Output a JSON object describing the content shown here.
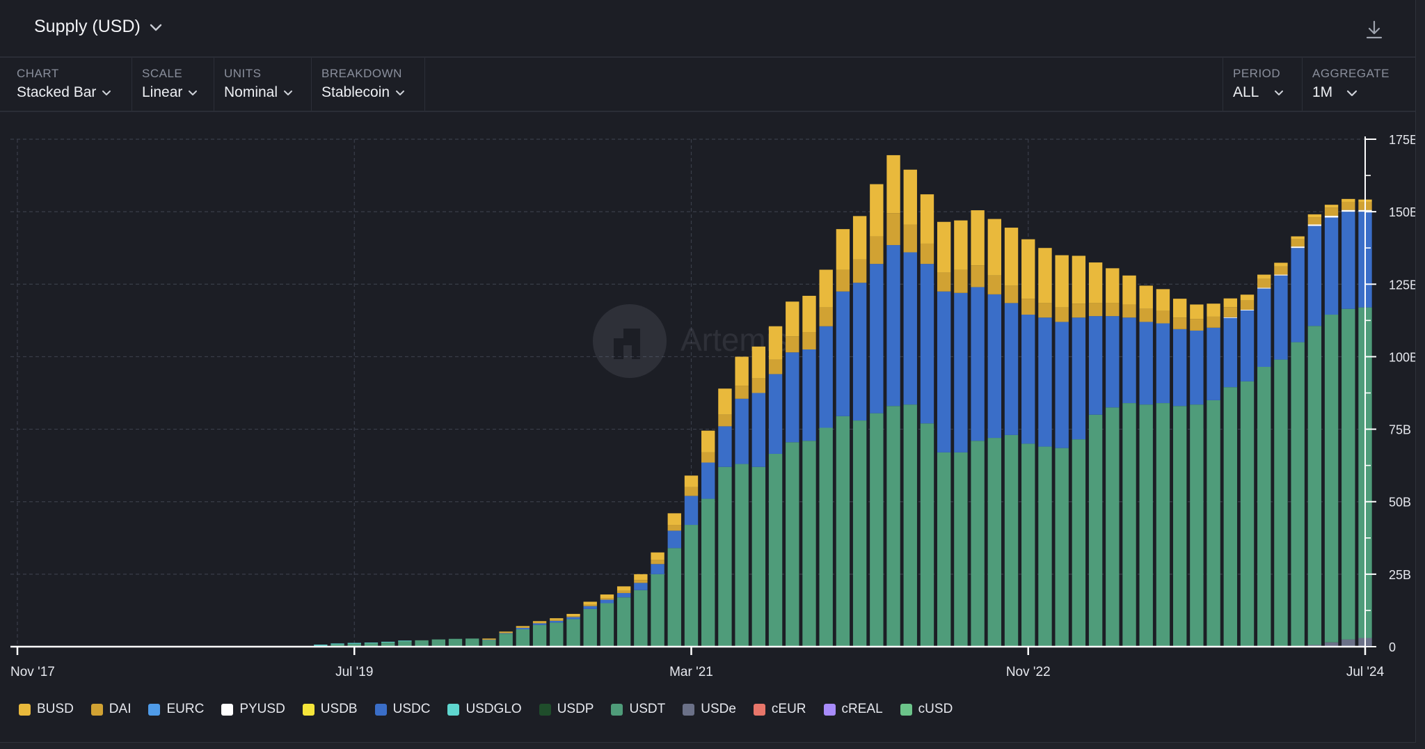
{
  "header": {
    "title": "Supply (USD)",
    "title_icon": "chevron-down-icon",
    "download_icon": "download-icon"
  },
  "controls": [
    {
      "label": "CHART",
      "value": "Stacked Bar"
    },
    {
      "label": "SCALE",
      "value": "Linear"
    },
    {
      "label": "UNITS",
      "value": "Nominal"
    },
    {
      "label": "BREAKDOWN",
      "value": "Stablecoin"
    },
    {
      "label": "PERIOD",
      "value": "ALL"
    },
    {
      "label": "AGGREGATE",
      "value": "1M"
    }
  ],
  "watermark": "Artemis",
  "colors": {
    "background": "#1c1e25",
    "grid": "#3a3e4a",
    "axis": "#ffffff"
  },
  "chart_data": {
    "type": "bar",
    "stacked": true,
    "ylim": [
      0,
      175
    ],
    "y_ticks": [
      0,
      25,
      50,
      75,
      100,
      125,
      150,
      175
    ],
    "y_tick_labels": [
      "0",
      "25B",
      "50B",
      "75B",
      "100B",
      "125B",
      "150B",
      "175E"
    ],
    "x_tick_labels": [
      "Nov '17",
      "Jul '19",
      "Mar '21",
      "Nov '22",
      "Jul '24"
    ],
    "x_tick_positions": [
      0,
      20,
      40,
      60,
      80
    ],
    "grid": true,
    "legend_position": "bottom-left",
    "categories": [
      "Nov '17",
      "Dec '17",
      "Jan '18",
      "Feb '18",
      "Mar '18",
      "Apr '18",
      "May '18",
      "Jun '18",
      "Jul '18",
      "Aug '18",
      "Sep '18",
      "Oct '18",
      "Nov '18",
      "Dec '18",
      "Jan '19",
      "Feb '19",
      "Mar '19",
      "Apr '19",
      "May '19",
      "Jun '19",
      "Jul '19",
      "Aug '19",
      "Sep '19",
      "Oct '19",
      "Nov '19",
      "Dec '19",
      "Jan '20",
      "Feb '20",
      "Mar '20",
      "Apr '20",
      "May '20",
      "Jun '20",
      "Jul '20",
      "Aug '20",
      "Sep '20",
      "Oct '20",
      "Nov '20",
      "Dec '20",
      "Jan '21",
      "Feb '21",
      "Mar '21",
      "Apr '21",
      "May '21",
      "Jun '21",
      "Jul '21",
      "Aug '21",
      "Sep '21",
      "Oct '21",
      "Nov '21",
      "Dec '21",
      "Jan '22",
      "Feb '22",
      "Mar '22",
      "Apr '22",
      "May '22",
      "Jun '22",
      "Jul '22",
      "Aug '22",
      "Sep '22",
      "Oct '22",
      "Nov '22",
      "Dec '22",
      "Jan '23",
      "Feb '23",
      "Mar '23",
      "Apr '23",
      "May '23",
      "Jun '23",
      "Jul '23",
      "Aug '23",
      "Sep '23",
      "Oct '23",
      "Nov '23",
      "Dec '23",
      "Jan '24",
      "Feb '24",
      "Mar '24",
      "Apr '24",
      "May '24",
      "Jun '24",
      "Jul '24"
    ],
    "series": [
      {
        "name": "cUSD",
        "color": "#6cc48a",
        "values": [
          0,
          0,
          0,
          0,
          0,
          0,
          0,
          0,
          0,
          0,
          0,
          0,
          0,
          0,
          0,
          0,
          0,
          0,
          0,
          0,
          0,
          0,
          0,
          0,
          0,
          0,
          0,
          0,
          0,
          0,
          0,
          0,
          0,
          0,
          0,
          0,
          0,
          0,
          0,
          0,
          0,
          0,
          0,
          0,
          0,
          0,
          0,
          0,
          0,
          0,
          0,
          0,
          0,
          0,
          0,
          0,
          0,
          0,
          0,
          0,
          0,
          0,
          0,
          0,
          0,
          0,
          0,
          0,
          0,
          0,
          0,
          0,
          0,
          0,
          0,
          0,
          0,
          0,
          0,
          0,
          0
        ]
      },
      {
        "name": "USDe",
        "color": "#6b7188",
        "values": [
          0,
          0,
          0,
          0,
          0,
          0,
          0,
          0,
          0,
          0,
          0,
          0,
          0,
          0,
          0,
          0,
          0,
          0,
          0,
          0,
          0,
          0,
          0,
          0,
          0,
          0,
          0,
          0,
          0,
          0,
          0,
          0,
          0,
          0,
          0,
          0,
          0,
          0,
          0,
          0,
          0,
          0,
          0,
          0,
          0,
          0,
          0,
          0,
          0,
          0,
          0,
          0,
          0,
          0,
          0,
          0,
          0,
          0,
          0,
          0,
          0,
          0,
          0,
          0,
          0,
          0,
          0,
          0,
          0,
          0,
          0,
          0,
          0,
          0,
          0,
          0,
          0,
          0.6,
          1.5,
          2.5,
          3
        ]
      },
      {
        "name": "USDT",
        "color": "#4f9c7a",
        "values": [
          0,
          0,
          0,
          0,
          0,
          0,
          0,
          0,
          0,
          0,
          0,
          0,
          0,
          0,
          0,
          0,
          0,
          0,
          0.3,
          0.8,
          1.0,
          1.2,
          1.5,
          2.0,
          2.2,
          2.5,
          2.7,
          2.8,
          2.4,
          4.5,
          6.0,
          7.5,
          8.3,
          9.5,
          13.0,
          15.0,
          17.0,
          19.5,
          25.0,
          34.0,
          42.0,
          51.0,
          62.0,
          63.0,
          62.0,
          66.5,
          70.5,
          71.0,
          75.5,
          79.5,
          78.0,
          80.5,
          83.0,
          83.5,
          77.0,
          67.0,
          67.0,
          71.0,
          72.0,
          73.0,
          70.0,
          69.0,
          68.5,
          71.5,
          80.0,
          82.5,
          84.0,
          83.5,
          84.0,
          83.0,
          83.5,
          85.0,
          89.5,
          91.5,
          96.5,
          99.0,
          105.0,
          110.0,
          113.0,
          114.0,
          114.0
        ]
      },
      {
        "name": "USDP",
        "color": "#1f4d2b",
        "values": [
          0,
          0,
          0,
          0,
          0,
          0,
          0,
          0,
          0,
          0,
          0,
          0,
          0,
          0,
          0,
          0,
          0,
          0,
          0,
          0,
          0,
          0,
          0,
          0,
          0,
          0,
          0,
          0,
          0,
          0,
          0,
          0,
          0,
          0,
          0,
          0,
          0,
          0,
          0,
          0,
          0,
          0,
          0,
          0,
          0,
          0,
          0,
          0,
          0,
          0,
          0,
          0,
          0,
          0,
          0,
          0,
          0,
          0,
          0,
          0,
          0,
          0,
          0,
          0,
          0,
          0,
          0,
          0,
          0,
          0,
          0,
          0,
          0,
          0,
          0,
          0,
          0,
          0,
          0,
          0,
          0
        ]
      },
      {
        "name": "USDGLO",
        "color": "#5fd6cf",
        "values": [
          0,
          0,
          0,
          0,
          0,
          0,
          0,
          0,
          0,
          0,
          0,
          0,
          0,
          0,
          0,
          0,
          0,
          0,
          0.4,
          0.3,
          0.3,
          0.2,
          0.2,
          0.1,
          0,
          0,
          0,
          0,
          0,
          0,
          0,
          0,
          0,
          0,
          0,
          0,
          0,
          0,
          0,
          0,
          0,
          0,
          0,
          0,
          0,
          0,
          0,
          0,
          0,
          0,
          0,
          0,
          0,
          0,
          0,
          0,
          0,
          0,
          0,
          0,
          0,
          0,
          0,
          0,
          0,
          0,
          0,
          0,
          0,
          0,
          0,
          0,
          0,
          0,
          0,
          0,
          0,
          0,
          0,
          0,
          0
        ]
      },
      {
        "name": "USDC",
        "color": "#3a6ec8",
        "values": [
          0,
          0,
          0,
          0,
          0,
          0,
          0,
          0,
          0,
          0,
          0,
          0,
          0,
          0,
          0,
          0,
          0,
          0,
          0,
          0,
          0,
          0,
          0,
          0,
          0,
          0,
          0,
          0,
          0.1,
          0.3,
          0.5,
          0.6,
          0.6,
          0.7,
          1.0,
          1.2,
          1.5,
          2.5,
          3.5,
          6.0,
          10.0,
          12.5,
          14.0,
          22.5,
          25.5,
          27.5,
          31.0,
          31.5,
          35.0,
          43.0,
          47.5,
          51.5,
          55.5,
          52.5,
          55.0,
          55.5,
          55.0,
          53.0,
          49.5,
          45.5,
          44.5,
          44.5,
          43.5,
          42.0,
          34.0,
          31.5,
          29.5,
          28.5,
          27.5,
          26.5,
          25.5,
          25.0,
          24.0,
          24.5,
          27.0,
          29.0,
          32.5,
          34.5,
          33.5,
          33.5,
          33.0
        ]
      },
      {
        "name": "USDB",
        "color": "#f5e53a",
        "values": [
          0,
          0,
          0,
          0,
          0,
          0,
          0,
          0,
          0,
          0,
          0,
          0,
          0,
          0,
          0,
          0,
          0,
          0,
          0,
          0,
          0,
          0,
          0,
          0,
          0,
          0,
          0,
          0,
          0,
          0,
          0,
          0,
          0,
          0,
          0,
          0,
          0,
          0,
          0,
          0,
          0,
          0,
          0,
          0,
          0,
          0,
          0,
          0,
          0,
          0,
          0,
          0,
          0,
          0,
          0,
          0,
          0,
          0,
          0,
          0,
          0,
          0,
          0,
          0,
          0,
          0,
          0,
          0,
          0,
          0,
          0,
          0,
          0,
          0,
          0,
          0,
          0,
          0,
          0,
          0,
          0
        ]
      },
      {
        "name": "PYUSD",
        "color": "#ffffff",
        "values": [
          0,
          0,
          0,
          0,
          0,
          0,
          0,
          0,
          0,
          0,
          0,
          0,
          0,
          0,
          0,
          0,
          0,
          0,
          0,
          0,
          0,
          0,
          0,
          0,
          0,
          0,
          0,
          0,
          0,
          0,
          0,
          0,
          0,
          0,
          0,
          0,
          0,
          0,
          0,
          0,
          0,
          0,
          0,
          0,
          0,
          0,
          0,
          0,
          0,
          0,
          0,
          0,
          0,
          0,
          0,
          0,
          0,
          0,
          0,
          0,
          0,
          0,
          0,
          0,
          0,
          0,
          0,
          0,
          0,
          0,
          0,
          0,
          0.1,
          0.2,
          0.3,
          0.3,
          0.5,
          0.5,
          0.6,
          0.6,
          0.6
        ]
      },
      {
        "name": "EURC",
        "color": "#4f9be8",
        "values": [
          0,
          0,
          0,
          0,
          0,
          0,
          0,
          0,
          0,
          0,
          0,
          0,
          0,
          0,
          0,
          0,
          0,
          0,
          0,
          0,
          0,
          0,
          0,
          0,
          0,
          0,
          0,
          0,
          0,
          0,
          0,
          0,
          0,
          0,
          0,
          0,
          0,
          0,
          0,
          0,
          0,
          0,
          0,
          0,
          0,
          0,
          0,
          0,
          0,
          0,
          0,
          0,
          0,
          0,
          0,
          0,
          0,
          0,
          0,
          0,
          0,
          0,
          0,
          0,
          0,
          0,
          0,
          0,
          0,
          0,
          0,
          0,
          0,
          0,
          0,
          0,
          0,
          0,
          0,
          0,
          0
        ]
      },
      {
        "name": "DAI",
        "color": "#d1a233",
        "values": [
          0,
          0,
          0,
          0,
          0,
          0,
          0,
          0,
          0,
          0,
          0,
          0,
          0,
          0,
          0,
          0,
          0,
          0,
          0,
          0,
          0,
          0,
          0,
          0,
          0,
          0,
          0,
          0,
          0.1,
          0.1,
          0.2,
          0.2,
          0.3,
          0.3,
          0.5,
          0.6,
          0.8,
          1.0,
          1.5,
          2.0,
          3.0,
          3.5,
          4.0,
          4.5,
          5.0,
          5.0,
          5.5,
          6.0,
          6.5,
          7.5,
          8.0,
          9.5,
          11.0,
          9.5,
          7.0,
          6.5,
          8.0,
          7.5,
          6.5,
          6.0,
          5.5,
          5.0,
          5.0,
          4.8,
          4.5,
          4.5,
          4.5,
          4.5,
          4.3,
          4.0,
          4.0,
          3.8,
          3.5,
          3.2,
          3.0,
          2.8,
          2.5,
          2.5,
          2.8,
          2.8,
          2.8
        ]
      },
      {
        "name": "BUSD",
        "color": "#e9b93c",
        "values": [
          0,
          0,
          0,
          0,
          0,
          0,
          0,
          0,
          0,
          0,
          0,
          0,
          0,
          0,
          0,
          0,
          0,
          0,
          0,
          0,
          0,
          0,
          0,
          0,
          0,
          0,
          0,
          0,
          0.2,
          0.3,
          0.4,
          0.5,
          0.6,
          0.8,
          1.0,
          1.2,
          1.5,
          2.0,
          2.5,
          4.0,
          4.0,
          7.5,
          9.0,
          10.0,
          11.0,
          11.5,
          12.0,
          12.5,
          13.0,
          14.0,
          15.0,
          18.0,
          20.0,
          19.0,
          17.0,
          17.5,
          17.0,
          19.0,
          19.5,
          20.0,
          20.5,
          19.0,
          18.0,
          16.5,
          14.0,
          12.0,
          10.0,
          8.0,
          7.5,
          6.5,
          5.0,
          4.5,
          3.0,
          2.0,
          1.5,
          1.3,
          1.0,
          1.0,
          1.0,
          1.0,
          0.8
        ]
      },
      {
        "name": "cEUR",
        "color": "#e8766a",
        "values": [
          0,
          0,
          0,
          0,
          0,
          0,
          0,
          0,
          0,
          0,
          0,
          0,
          0,
          0,
          0,
          0,
          0,
          0,
          0,
          0,
          0,
          0,
          0,
          0,
          0,
          0,
          0,
          0,
          0,
          0,
          0,
          0,
          0,
          0,
          0,
          0,
          0,
          0,
          0,
          0,
          0,
          0,
          0,
          0,
          0,
          0,
          0,
          0,
          0,
          0,
          0,
          0,
          0,
          0,
          0,
          0,
          0,
          0,
          0,
          0,
          0,
          0,
          0,
          0,
          0,
          0,
          0,
          0,
          0,
          0,
          0,
          0,
          0,
          0,
          0,
          0,
          0,
          0,
          0,
          0,
          0
        ]
      },
      {
        "name": "cREAL",
        "color": "#a78bfa",
        "values": [
          0,
          0,
          0,
          0,
          0,
          0,
          0,
          0,
          0,
          0,
          0,
          0,
          0,
          0,
          0,
          0,
          0,
          0,
          0,
          0,
          0,
          0,
          0,
          0,
          0,
          0,
          0,
          0,
          0,
          0,
          0,
          0,
          0,
          0,
          0,
          0,
          0,
          0,
          0,
          0,
          0,
          0,
          0,
          0,
          0,
          0,
          0,
          0,
          0,
          0,
          0,
          0,
          0,
          0,
          0,
          0,
          0,
          0,
          0,
          0,
          0,
          0,
          0,
          0,
          0,
          0,
          0,
          0,
          0,
          0,
          0,
          0,
          0,
          0,
          0,
          0,
          0,
          0,
          0,
          0,
          0
        ]
      }
    ]
  },
  "legend": [
    {
      "label": "BUSD",
      "color": "#e9b93c"
    },
    {
      "label": "DAI",
      "color": "#d1a233"
    },
    {
      "label": "EURC",
      "color": "#4f9be8"
    },
    {
      "label": "PYUSD",
      "color": "#ffffff"
    },
    {
      "label": "USDB",
      "color": "#f5e53a"
    },
    {
      "label": "USDC",
      "color": "#3a6ec8"
    },
    {
      "label": "USDGLO",
      "color": "#5fd6cf"
    },
    {
      "label": "USDP",
      "color": "#1f4d2b"
    },
    {
      "label": "USDT",
      "color": "#4f9c7a"
    },
    {
      "label": "USDe",
      "color": "#6b7188"
    },
    {
      "label": "cEUR",
      "color": "#e8766a"
    },
    {
      "label": "cREAL",
      "color": "#a78bfa"
    },
    {
      "label": "cUSD",
      "color": "#6cc48a"
    }
  ]
}
